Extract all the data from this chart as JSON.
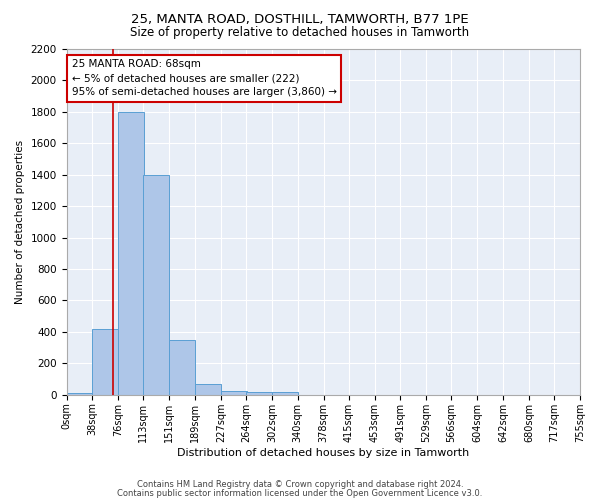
{
  "title": "25, MANTA ROAD, DOSTHILL, TAMWORTH, B77 1PE",
  "subtitle": "Size of property relative to detached houses in Tamworth",
  "xlabel": "Distribution of detached houses by size in Tamworth",
  "ylabel": "Number of detached properties",
  "bar_left_edges": [
    0,
    38,
    76,
    113,
    151,
    189,
    227,
    264,
    302,
    340,
    378,
    415,
    453,
    491,
    529,
    566,
    604,
    642,
    680,
    717
  ],
  "bar_heights": [
    10,
    420,
    1800,
    1400,
    350,
    70,
    25,
    20,
    20,
    0,
    0,
    0,
    0,
    0,
    0,
    0,
    0,
    0,
    0,
    0
  ],
  "bin_width": 38,
  "bar_color": "#aec6e8",
  "bar_edge_color": "#5a9fd4",
  "property_size": 68,
  "red_line_color": "#cc0000",
  "annotation_line1": "25 MANTA ROAD: 68sqm",
  "annotation_line2": "← 5% of detached houses are smaller (222)",
  "annotation_line3": "95% of semi-detached houses are larger (3,860) →",
  "annotation_box_color": "#cc0000",
  "ylim": [
    0,
    2200
  ],
  "yticks": [
    0,
    200,
    400,
    600,
    800,
    1000,
    1200,
    1400,
    1600,
    1800,
    2000,
    2200
  ],
  "tick_labels": [
    "0sqm",
    "38sqm",
    "76sqm",
    "113sqm",
    "151sqm",
    "189sqm",
    "227sqm",
    "264sqm",
    "302sqm",
    "340sqm",
    "378sqm",
    "415sqm",
    "453sqm",
    "491sqm",
    "529sqm",
    "566sqm",
    "604sqm",
    "642sqm",
    "680sqm",
    "717sqm",
    "755sqm"
  ],
  "background_color": "#e8eef7",
  "grid_color": "#ffffff",
  "footer_line1": "Contains HM Land Registry data © Crown copyright and database right 2024.",
  "footer_line2": "Contains public sector information licensed under the Open Government Licence v3.0."
}
